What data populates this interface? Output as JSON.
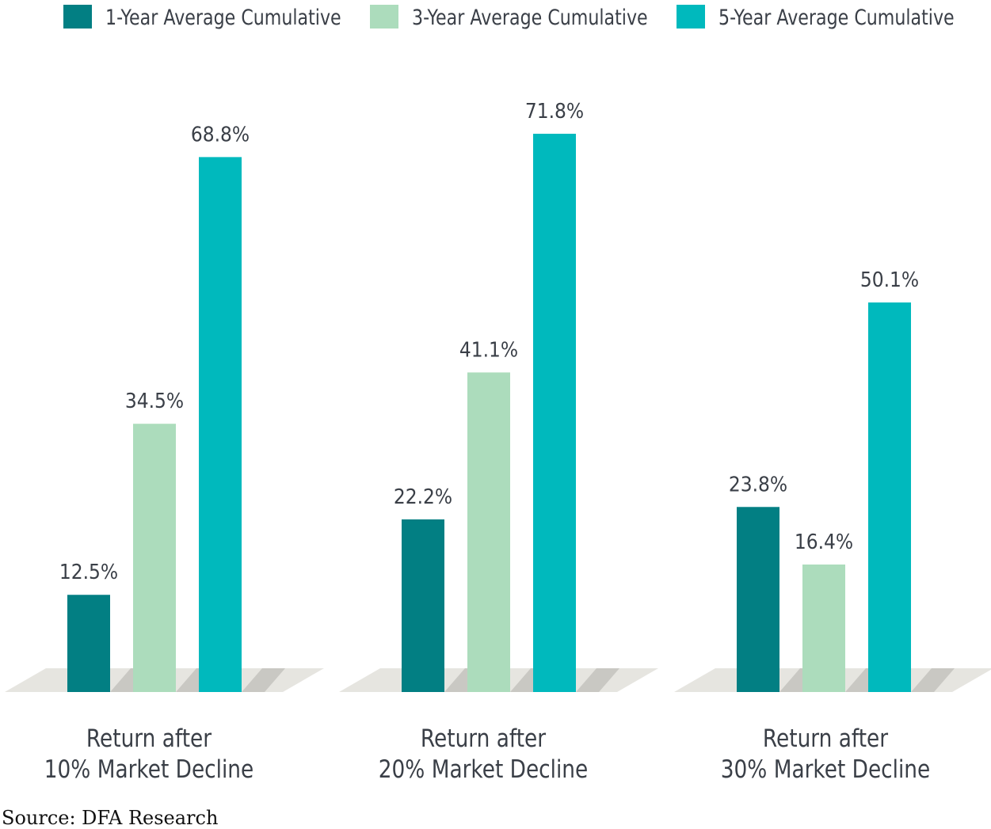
{
  "colors": {
    "series1": "#027f83",
    "series2": "#acdcbc",
    "series3": "#00b9bd",
    "floor": "#e6e5e0",
    "floorShadow": "#c9c8c3"
  },
  "chart_data": {
    "type": "bar",
    "title": "",
    "xlabel": "",
    "ylabel": "",
    "ylim": [
      0,
      75
    ],
    "grid": false,
    "legend_position": "top",
    "categories": [
      [
        "Return after",
        "10% Market Decline"
      ],
      [
        "Return after",
        "20% Market Decline"
      ],
      [
        "Return after",
        "30% Market Decline"
      ]
    ],
    "series": [
      {
        "name": "1-Year Average Cumulative",
        "values": [
          12.5,
          22.2,
          23.8
        ],
        "labels": [
          "12.5%",
          "22.2%",
          "23.8%"
        ]
      },
      {
        "name": "3-Year Average Cumulative",
        "values": [
          34.5,
          41.1,
          16.4
        ],
        "labels": [
          "34.5%",
          "41.1%",
          "16.4%"
        ]
      },
      {
        "name": "5-Year Average Cumulative",
        "values": [
          68.8,
          71.8,
          50.1
        ],
        "labels": [
          "68.8%",
          "71.8%",
          "50.1%"
        ]
      }
    ]
  },
  "source": "Source: DFA Research"
}
